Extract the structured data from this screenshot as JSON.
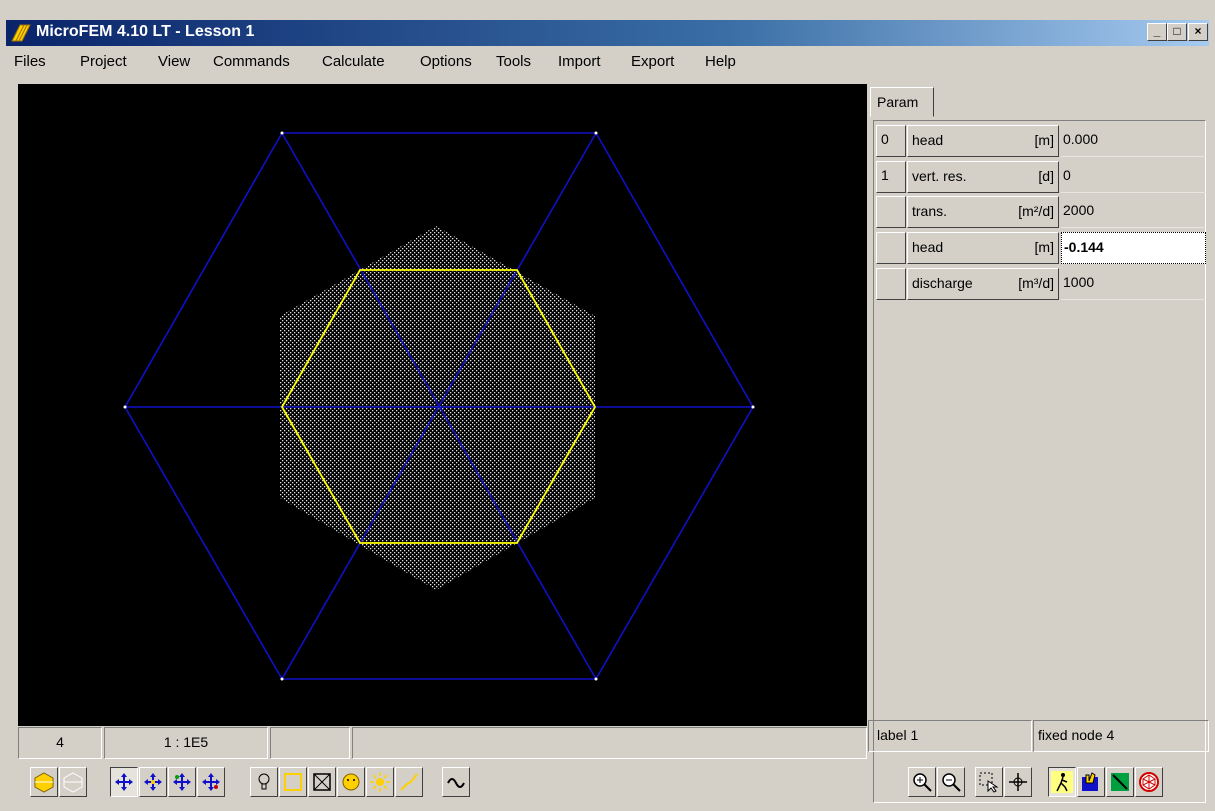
{
  "window": {
    "title": "MicroFEM 4.10 LT - Lesson 1",
    "min_glyph": "_",
    "max_glyph": "□",
    "close_glyph": "×"
  },
  "menu": [
    "Files",
    "Project",
    "View",
    "Commands",
    "Calculate",
    "Options",
    "Tools",
    "Import",
    "Export",
    "Help"
  ],
  "panel": {
    "tab": "Param",
    "rows": [
      {
        "index": "0",
        "name": "head",
        "unit": "[m]",
        "value": "0.000"
      },
      {
        "index": "1",
        "name": "vert. res.",
        "unit": "[d]",
        "value": "0"
      },
      {
        "index": "",
        "name": "trans.",
        "unit": "[m²/d]",
        "value": "2000"
      },
      {
        "index": "",
        "name": "head",
        "unit": "[m]",
        "value": "-0.144"
      },
      {
        "index": "",
        "name": "discharge",
        "unit": "[m³/d]",
        "value": "1000"
      }
    ],
    "status_left": "label 1",
    "status_right": "fixed node 4"
  },
  "statusbar": {
    "layer": "4",
    "scale": "1 : 1E5",
    "field3": "",
    "field4": ""
  },
  "colors": {
    "canvas": "#000000",
    "outer_mesh": "#0000c8",
    "inner_hexagon": "#ffff00",
    "dots": "#ffffff"
  },
  "toolbar_left": [
    "layer-up-icon",
    "layer-down-icon",
    "pan-icon",
    "pan-2-icon",
    "pan-3-icon",
    "pan-4-icon",
    "bulb-icon",
    "rectangle-icon",
    "zoom-box-icon",
    "smiley-icon",
    "sun-icon",
    "line-icon",
    "curve-icon"
  ],
  "toolbar_right": [
    "zoom-in-icon",
    "zoom-out-icon",
    "select-icon",
    "move-icon",
    "walk-icon",
    "hand-icon",
    "pen-icon",
    "wheel-icon"
  ]
}
